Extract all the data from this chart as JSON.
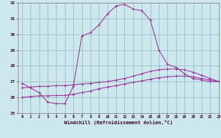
{
  "xlabel": "Windchill (Refroidissement éolien,°C)",
  "background_color": "#cce8ec",
  "grid_color": "#99bbcc",
  "line_color": "#993399",
  "x_values": [
    0,
    1,
    2,
    3,
    4,
    5,
    6,
    7,
    8,
    9,
    10,
    11,
    12,
    13,
    14,
    15,
    16,
    17,
    18,
    19,
    20,
    21,
    22,
    23
  ],
  "line1": [
    26.9,
    26.6,
    26.3,
    25.7,
    25.6,
    25.6,
    26.7,
    29.9,
    30.1,
    30.6,
    31.3,
    31.8,
    31.9,
    31.6,
    31.5,
    30.9,
    29.0,
    28.1,
    27.9,
    27.5,
    27.2,
    27.1,
    27.0,
    27.0
  ],
  "line2": [
    26.6,
    26.65,
    26.7,
    26.7,
    26.75,
    26.75,
    26.8,
    26.85,
    26.9,
    26.95,
    27.0,
    27.1,
    27.2,
    27.35,
    27.5,
    27.65,
    27.75,
    27.8,
    27.8,
    27.75,
    27.6,
    27.4,
    27.2,
    27.0
  ],
  "line3": [
    26.0,
    26.05,
    26.1,
    26.1,
    26.12,
    26.12,
    26.2,
    26.3,
    26.4,
    26.55,
    26.65,
    26.75,
    26.85,
    26.95,
    27.05,
    27.15,
    27.25,
    27.3,
    27.35,
    27.35,
    27.3,
    27.2,
    27.1,
    27.0
  ],
  "ylim": [
    25,
    32
  ],
  "xlim": [
    -0.5,
    23
  ],
  "yticks": [
    25,
    26,
    27,
    28,
    29,
    30,
    31,
    32
  ],
  "xticks": [
    0,
    1,
    2,
    3,
    4,
    5,
    6,
    7,
    8,
    9,
    10,
    11,
    12,
    13,
    14,
    15,
    16,
    17,
    18,
    19,
    20,
    21,
    22,
    23
  ]
}
